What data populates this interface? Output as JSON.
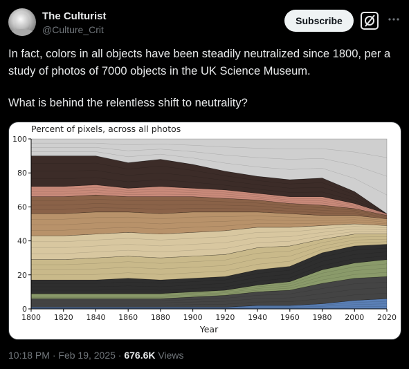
{
  "author": {
    "name": "The Culturist",
    "handle": "@Culture_Crit",
    "avatar_icon": "statue-bust-avatar"
  },
  "actions": {
    "subscribe_label": "Subscribe",
    "grok_icon": "grok-icon",
    "more_icon": "more-horizontal-icon"
  },
  "tweet": {
    "paragraph_1": "In fact, colors in all objects have been steadily neutralized since 1800, per a study of photos of 7000 objects in the UK Science Museum.",
    "paragraph_2": "What is behind the relentless shift to neutrality?"
  },
  "meta": {
    "time": "10:18 PM",
    "separator": "·",
    "date": "Feb 19, 2025",
    "views_count": "676.6K",
    "views_label": "Views"
  },
  "chart_data": {
    "type": "area",
    "title": "Percent of pixels, across all photos",
    "xlabel": "Year",
    "ylabel": "",
    "xlim": [
      1800,
      2020
    ],
    "ylim": [
      0,
      100
    ],
    "x_ticks": [
      1800,
      1820,
      1840,
      1860,
      1880,
      1900,
      1920,
      1940,
      1960,
      1980,
      2000,
      2020
    ],
    "y_ticks": [
      0,
      20,
      40,
      60,
      80,
      100
    ],
    "x": [
      1800,
      1820,
      1840,
      1860,
      1880,
      1900,
      1920,
      1940,
      1960,
      1980,
      2000,
      2020
    ],
    "series": [
      {
        "color": "#5a7fb5",
        "values": [
          1,
          1,
          1,
          1,
          1,
          1,
          1,
          2,
          2,
          3,
          5,
          6
        ]
      },
      {
        "color": "#444444",
        "values": [
          5,
          5,
          5,
          5,
          5,
          6,
          7,
          8,
          9,
          12,
          13,
          13
        ]
      },
      {
        "color": "#8a9a6a",
        "values": [
          3,
          3,
          3,
          3,
          3,
          3,
          3,
          4,
          5,
          8,
          9,
          10
        ]
      },
      {
        "color": "#2e2e2e",
        "values": [
          8,
          8,
          8,
          9,
          8,
          8,
          8,
          9,
          9,
          10,
          10,
          9
        ]
      },
      {
        "color": "#c9b98a",
        "values": [
          12,
          12,
          13,
          13,
          13,
          13,
          13,
          13,
          12,
          8,
          7,
          6
        ]
      },
      {
        "color": "#d8c7a0",
        "values": [
          14,
          14,
          14,
          14,
          14,
          14,
          14,
          12,
          11,
          8,
          6,
          5
        ]
      },
      {
        "color": "#b8926a",
        "values": [
          13,
          13,
          13,
          12,
          12,
          12,
          11,
          9,
          8,
          6,
          5,
          4
        ]
      },
      {
        "color": "#8a6248",
        "values": [
          10,
          10,
          10,
          9,
          10,
          9,
          8,
          7,
          6,
          6,
          4,
          2
        ]
      },
      {
        "color": "#c98a7a",
        "values": [
          6,
          6,
          6,
          5,
          6,
          5,
          5,
          4,
          4,
          5,
          3,
          1
        ]
      },
      {
        "color": "#3c2c28",
        "values": [
          18,
          18,
          17,
          15,
          16,
          14,
          11,
          10,
          10,
          11,
          7,
          0
        ]
      },
      {
        "color": "#cfcfcf",
        "values": [
          10,
          10,
          10,
          14,
          12,
          15,
          19,
          22,
          24,
          23,
          31,
          44
        ]
      }
    ]
  }
}
